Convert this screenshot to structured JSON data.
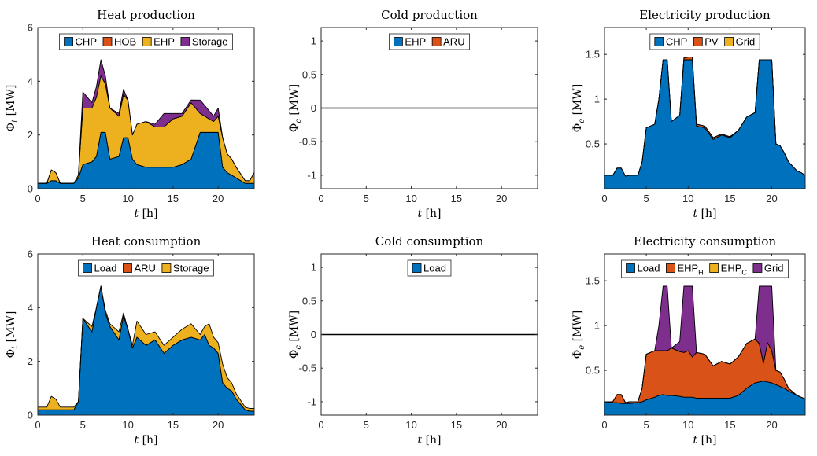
{
  "figure": {
    "panels": 6
  },
  "colors": {
    "blue": "#0072BD",
    "orange": "#D95319",
    "yellow": "#EDB120",
    "purple": "#7E2F8E",
    "axis": "#262626"
  },
  "chart_data": [
    {
      "type": "area",
      "title": "Heat production",
      "xlabel": "t [h]",
      "ylabel": "Φt [MW]",
      "xlim": [
        0,
        24
      ],
      "ylim": [
        0,
        6
      ],
      "xticks": [
        0,
        5,
        10,
        15,
        20
      ],
      "yticks": [
        0,
        2,
        4,
        6
      ],
      "legend": [
        "CHP",
        "HOB",
        "EHP",
        "Storage"
      ],
      "legend_position": "top",
      "x": [
        0,
        1,
        1.5,
        2,
        2.5,
        3,
        4,
        4.5,
        5,
        6,
        6.5,
        7,
        7.5,
        8,
        9,
        9.5,
        10,
        10.5,
        11,
        12,
        13,
        14,
        15,
        16,
        17,
        18,
        18.5,
        19,
        19.5,
        20,
        20.5,
        21,
        21.5,
        22,
        23,
        23.5,
        24
      ],
      "series": [
        {
          "name": "CHP",
          "color": "#0072BD",
          "values": [
            0.2,
            0.2,
            0.3,
            0.3,
            0.2,
            0.2,
            0.2,
            0.4,
            0.9,
            1.0,
            1.2,
            2.1,
            2.1,
            1.1,
            1.2,
            1.9,
            1.9,
            1.1,
            0.9,
            0.8,
            0.8,
            0.8,
            0.8,
            0.9,
            1.1,
            2.1,
            2.1,
            2.1,
            2.1,
            2.1,
            0.8,
            0.6,
            0.5,
            0.4,
            0.2,
            0.2,
            0.2
          ]
        },
        {
          "name": "HOB",
          "color": "#D95319",
          "values": [
            0,
            0,
            0,
            0,
            0,
            0,
            0,
            0,
            0,
            0,
            0,
            0,
            0,
            0,
            0,
            0,
            0,
            0,
            0,
            0,
            0,
            0,
            0,
            0,
            0,
            0,
            0,
            0,
            0,
            0,
            0,
            0,
            0,
            0,
            0,
            0,
            0
          ]
        },
        {
          "name": "EHP",
          "color": "#EDB120",
          "values": [
            0,
            0,
            0.4,
            0.3,
            0,
            0,
            0,
            0.1,
            2.1,
            2.0,
            2.2,
            2.1,
            1.8,
            1.9,
            1.5,
            1.6,
            1.4,
            0.9,
            1.5,
            1.7,
            1.5,
            1.5,
            1.8,
            1.8,
            2.1,
            0.7,
            0.6,
            0.5,
            0.4,
            0.6,
            1.1,
            0.7,
            0.6,
            0.4,
            0.1,
            0.1,
            0.4
          ]
        },
        {
          "name": "Storage",
          "color": "#7E2F8E",
          "values": [
            0,
            0,
            0,
            0,
            0,
            0,
            0,
            0,
            0.6,
            0.2,
            0.4,
            0.6,
            0.3,
            0,
            0.1,
            0.2,
            0,
            0,
            0,
            0,
            0.1,
            0.5,
            0.2,
            0.1,
            0.1,
            0.5,
            0.4,
            0.3,
            0.2,
            0.3,
            0,
            0,
            0,
            0,
            0,
            0,
            0
          ]
        }
      ]
    },
    {
      "type": "area",
      "title": "Cold production",
      "xlabel": "t [h]",
      "ylabel": "Φc [MW]",
      "xlim": [
        0,
        24
      ],
      "ylim": [
        -1.2,
        1.2
      ],
      "xticks": [
        0,
        5,
        10,
        15,
        20
      ],
      "yticks": [
        -1,
        -0.5,
        0,
        0.5,
        1
      ],
      "legend": [
        "EHP",
        "ARU"
      ],
      "legend_position": "top",
      "x": [
        0,
        24
      ],
      "series": [
        {
          "name": "EHP",
          "color": "#0072BD",
          "values": [
            0,
            0
          ]
        },
        {
          "name": "ARU",
          "color": "#D95319",
          "values": [
            0,
            0
          ]
        }
      ]
    },
    {
      "type": "area",
      "title": "Electricity production",
      "xlabel": "t [h]",
      "ylabel": "Φe [MW]",
      "xlim": [
        0,
        24
      ],
      "ylim": [
        0,
        1.8
      ],
      "xticks": [
        0,
        5,
        10,
        15,
        20
      ],
      "yticks": [
        0.5,
        1,
        1.5
      ],
      "legend": [
        "CHP",
        "PV",
        "Grid"
      ],
      "legend_position": "top",
      "x": [
        0,
        1,
        1.5,
        2,
        2.5,
        3,
        4,
        4.5,
        5,
        6,
        6.5,
        7,
        7.5,
        8,
        9,
        9.5,
        10,
        10.5,
        11,
        12,
        13,
        14,
        15,
        16,
        17,
        18,
        18.5,
        19,
        19.5,
        20,
        20.5,
        21,
        21.5,
        22,
        23,
        23.5,
        24
      ],
      "series": [
        {
          "name": "CHP",
          "color": "#0072BD",
          "values": [
            0.15,
            0.15,
            0.23,
            0.23,
            0.14,
            0.15,
            0.15,
            0.3,
            0.68,
            0.72,
            1.0,
            1.44,
            1.44,
            0.75,
            0.82,
            1.44,
            1.44,
            1.44,
            0.7,
            0.68,
            0.55,
            0.6,
            0.57,
            0.65,
            0.8,
            0.85,
            1.44,
            1.44,
            1.44,
            1.44,
            0.5,
            0.48,
            0.4,
            0.3,
            0.2,
            0.18,
            0.15
          ]
        },
        {
          "name": "PV",
          "color": "#D95319",
          "values": [
            0,
            0,
            0,
            0,
            0,
            0,
            0,
            0,
            0,
            0,
            0,
            0,
            0,
            0,
            0,
            0.02,
            0.03,
            0.03,
            0.02,
            0.02,
            0.02,
            0.01,
            0.01,
            0,
            0,
            0,
            0,
            0,
            0,
            0,
            0,
            0,
            0,
            0,
            0,
            0,
            0
          ]
        },
        {
          "name": "Grid",
          "color": "#EDB120",
          "values": [
            0,
            0,
            0,
            0,
            0,
            0,
            0,
            0,
            0,
            0,
            0,
            0,
            0,
            0,
            0,
            0,
            0,
            0,
            0,
            0,
            0,
            0,
            0,
            0,
            0,
            0,
            0,
            0,
            0,
            0,
            0,
            0,
            0,
            0,
            0,
            0,
            0
          ]
        }
      ]
    },
    {
      "type": "area",
      "title": "Heat consumption",
      "xlabel": "t [h]",
      "ylabel": "Φt [MW]",
      "xlim": [
        0,
        24
      ],
      "ylim": [
        0,
        6
      ],
      "xticks": [
        0,
        5,
        10,
        15,
        20
      ],
      "yticks": [
        0,
        2,
        4,
        6
      ],
      "legend": [
        "Load",
        "ARU",
        "Storage"
      ],
      "legend_position": "top",
      "x": [
        0,
        1,
        1.5,
        2,
        2.5,
        3,
        4,
        4.5,
        5,
        6,
        6.5,
        7,
        7.5,
        8,
        9,
        9.5,
        10,
        10.5,
        11,
        12,
        13,
        14,
        15,
        16,
        17,
        18,
        18.5,
        19,
        19.5,
        20,
        20.5,
        21,
        21.5,
        22,
        23,
        23.5,
        24
      ],
      "series": [
        {
          "name": "Load",
          "color": "#0072BD",
          "values": [
            0.2,
            0.2,
            0.2,
            0.2,
            0.2,
            0.2,
            0.2,
            0.5,
            3.6,
            3.1,
            4.0,
            4.8,
            3.8,
            3.3,
            2.8,
            3.7,
            3.2,
            2.5,
            2.9,
            2.6,
            2.8,
            2.3,
            2.6,
            2.8,
            2.9,
            2.8,
            3.0,
            2.6,
            2.5,
            2.3,
            1.2,
            1.0,
            0.9,
            0.6,
            0.2,
            0.15,
            0.15
          ]
        },
        {
          "name": "ARU",
          "color": "#D95319",
          "values": [
            0,
            0,
            0,
            0,
            0,
            0,
            0,
            0,
            0,
            0,
            0,
            0,
            0,
            0,
            0,
            0,
            0,
            0,
            0,
            0,
            0,
            0,
            0,
            0,
            0,
            0,
            0,
            0,
            0,
            0,
            0,
            0,
            0,
            0,
            0,
            0,
            0
          ]
        },
        {
          "name": "Storage",
          "color": "#EDB120",
          "values": [
            0.1,
            0.1,
            0.5,
            0.4,
            0.1,
            0.1,
            0.1,
            0,
            0,
            0.2,
            0,
            0,
            0.1,
            0.1,
            0.3,
            0.1,
            0,
            0.1,
            0.6,
            0.4,
            0.3,
            0.3,
            0.3,
            0.4,
            0.5,
            0.2,
            0.3,
            0.8,
            0.4,
            0.4,
            0.7,
            0.4,
            0.3,
            0.2,
            0.1,
            0.1,
            0.1
          ]
        }
      ]
    },
    {
      "type": "area",
      "title": "Cold consumption",
      "xlabel": "t [h]",
      "ylabel": "Φc [MW]",
      "xlim": [
        0,
        24
      ],
      "ylim": [
        -1.2,
        1.2
      ],
      "xticks": [
        0,
        5,
        10,
        15,
        20
      ],
      "yticks": [
        -1,
        -0.5,
        0,
        0.5,
        1
      ],
      "legend": [
        "Load"
      ],
      "legend_position": "top",
      "x": [
        0,
        24
      ],
      "series": [
        {
          "name": "Load",
          "color": "#0072BD",
          "values": [
            0,
            0
          ]
        }
      ]
    },
    {
      "type": "area",
      "title": "Electricity consumption",
      "xlabel": "t [h]",
      "ylabel": "Φe [MW]",
      "xlim": [
        0,
        24
      ],
      "ylim": [
        0,
        1.8
      ],
      "xticks": [
        0,
        5,
        10,
        15,
        20
      ],
      "yticks": [
        0.5,
        1,
        1.5
      ],
      "legend": [
        "Load",
        "EHP_H",
        "EHP_C",
        "Grid"
      ],
      "legend_position": "top",
      "x": [
        0,
        1,
        1.5,
        2,
        2.5,
        3,
        4,
        4.5,
        5,
        6,
        6.5,
        7,
        7.5,
        8,
        9,
        9.5,
        10,
        10.5,
        11,
        12,
        13,
        14,
        15,
        16,
        17,
        18,
        18.5,
        19,
        19.5,
        20,
        20.5,
        21,
        21.5,
        22,
        23,
        23.5,
        24
      ],
      "series": [
        {
          "name": "Load",
          "color": "#0072BD",
          "values": [
            0.15,
            0.14,
            0.14,
            0.13,
            0.13,
            0.13,
            0.14,
            0.15,
            0.17,
            0.2,
            0.22,
            0.23,
            0.22,
            0.22,
            0.21,
            0.2,
            0.2,
            0.2,
            0.19,
            0.19,
            0.19,
            0.19,
            0.19,
            0.22,
            0.3,
            0.36,
            0.37,
            0.38,
            0.37,
            0.36,
            0.34,
            0.32,
            0.3,
            0.27,
            0.22,
            0.2,
            0.18
          ]
        },
        {
          "name": "EHP_H",
          "color": "#D95319",
          "values": [
            0,
            0.01,
            0.09,
            0.1,
            0.01,
            0.02,
            0.01,
            0.15,
            0.51,
            0.52,
            0.5,
            0.49,
            0.5,
            0.53,
            0.5,
            0.5,
            0.52,
            0.45,
            0.51,
            0.49,
            0.36,
            0.41,
            0.38,
            0.43,
            0.5,
            0.49,
            0.43,
            0.2,
            0.44,
            0.36,
            0.16,
            0.16,
            0.1,
            0.03,
            0,
            0,
            0
          ]
        },
        {
          "name": "EHP_C",
          "color": "#EDB120",
          "values": [
            0,
            0,
            0,
            0,
            0,
            0,
            0,
            0,
            0,
            0,
            0,
            0,
            0,
            0,
            0,
            0,
            0,
            0,
            0,
            0,
            0,
            0,
            0,
            0,
            0,
            0,
            0,
            0,
            0,
            0,
            0,
            0,
            0,
            0,
            0,
            0,
            0
          ]
        },
        {
          "name": "Grid",
          "color": "#7E2F8E",
          "values": [
            0,
            0,
            0,
            0,
            0,
            0,
            0,
            0,
            0,
            0,
            0.28,
            0.72,
            0.72,
            0,
            0.11,
            0.74,
            0.72,
            0.79,
            0,
            0,
            0,
            0,
            0,
            0,
            0,
            0,
            0.64,
            0.86,
            0.63,
            0.72,
            0,
            0,
            0,
            0,
            0,
            0,
            0
          ]
        }
      ]
    }
  ]
}
